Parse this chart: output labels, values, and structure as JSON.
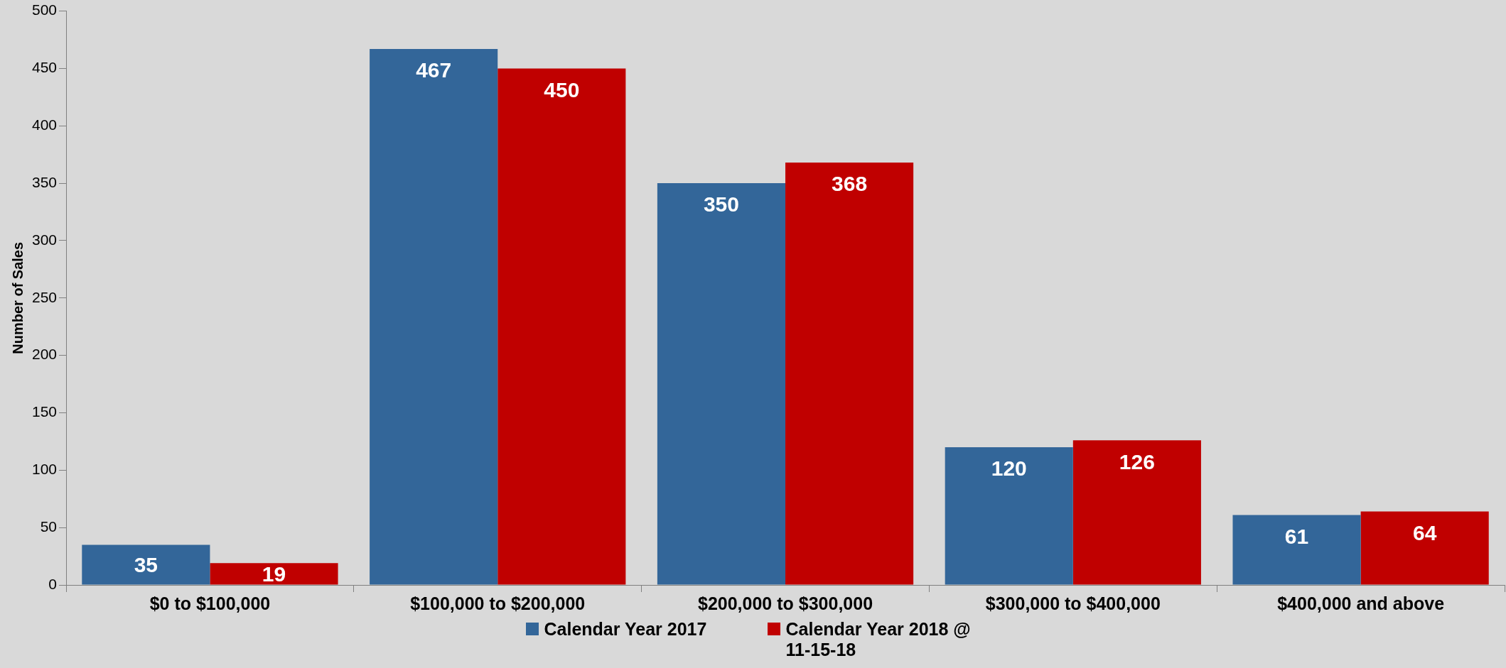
{
  "chart_data": {
    "type": "bar",
    "ylabel": "Number of Sales",
    "categories": [
      "$0 to $100,000",
      "$100,000 to $200,000",
      "$200,000 to $300,000",
      "$300,000 to $400,000",
      "$400,000 and above"
    ],
    "series": [
      {
        "name": "Calendar Year 2017",
        "color": "#336699",
        "values": [
          35,
          467,
          350,
          120,
          61
        ]
      },
      {
        "name": "Calendar Year 2018 @ 11-15-18",
        "color": "#c00000",
        "values": [
          19,
          450,
          368,
          126,
          64
        ]
      }
    ],
    "ylim": [
      0,
      500
    ],
    "yticks": [
      0,
      50,
      100,
      150,
      200,
      250,
      300,
      350,
      400,
      450,
      500
    ],
    "grid": false,
    "legend": "bottom",
    "data_labels": true
  }
}
